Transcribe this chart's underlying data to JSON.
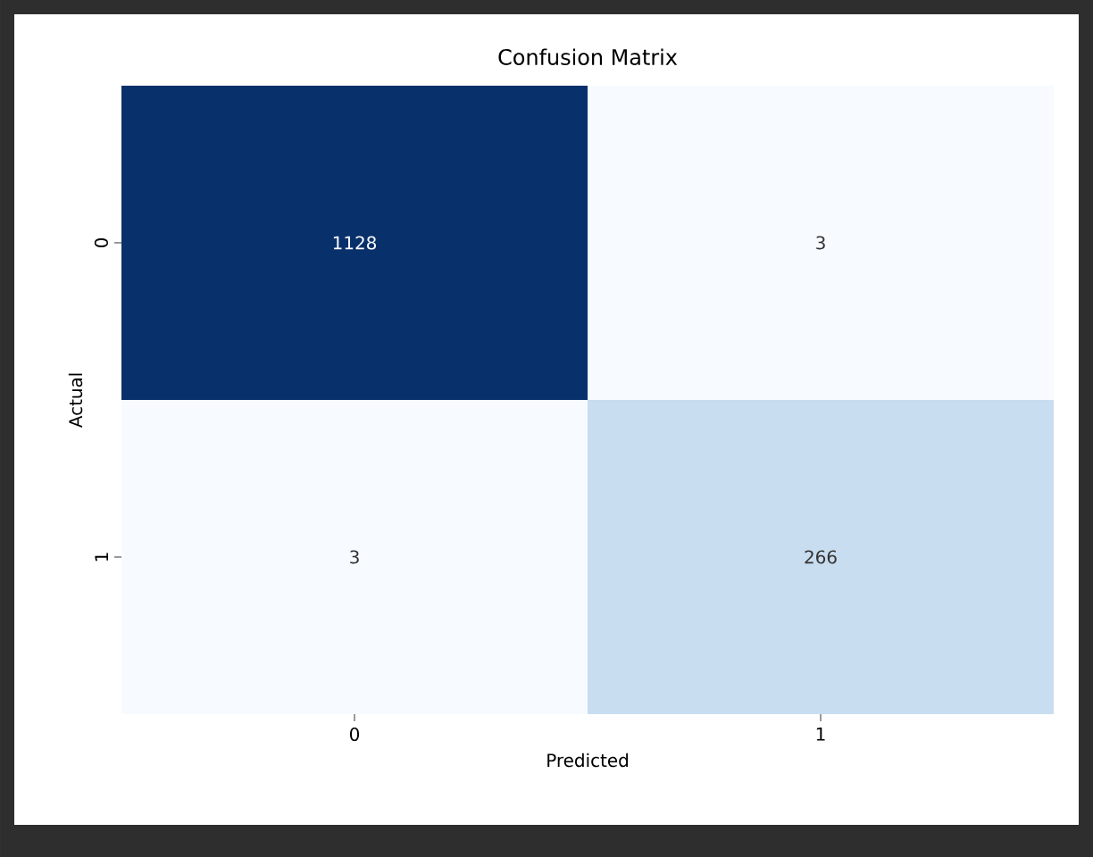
{
  "chart_data": {
    "type": "heatmap",
    "title": "Confusion Matrix",
    "xlabel": "Predicted",
    "ylabel": "Actual",
    "categories": [
      "0",
      "1"
    ],
    "y_categories": [
      "0",
      "1"
    ],
    "cells": [
      [
        1128,
        3
      ],
      [
        3,
        266
      ]
    ],
    "data_labels": true
  }
}
